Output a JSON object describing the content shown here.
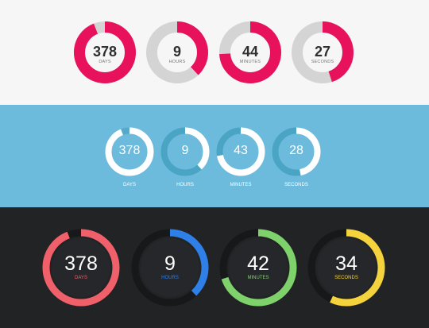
{
  "light": {
    "track_color": "#d4d4d4",
    "timers": [
      {
        "value": "378",
        "label": "Days",
        "progress": 0.94,
        "color": "#e8115b"
      },
      {
        "value": "9",
        "label": "Hours",
        "progress": 0.38,
        "color": "#e8115b"
      },
      {
        "value": "44",
        "label": "Minutes",
        "progress": 0.74,
        "color": "#e8115b"
      },
      {
        "value": "27",
        "label": "Seconds",
        "progress": 0.45,
        "color": "#e8115b"
      }
    ]
  },
  "blue": {
    "timers": [
      {
        "value": "378",
        "label": "Days",
        "progress": 0.94,
        "color": "#ffffff",
        "track": "#56a9c9"
      },
      {
        "value": "9",
        "label": "Hours",
        "progress": 0.38,
        "color": "#ffffff",
        "track": "#4aa5c5"
      },
      {
        "value": "43",
        "label": "Minutes",
        "progress": 0.72,
        "color": "#ffffff",
        "track": "#4aa5c5"
      },
      {
        "value": "28",
        "label": "Seconds",
        "progress": 0.47,
        "color": "#ffffff",
        "track": "#4aa5c5"
      }
    ]
  },
  "dark": {
    "track_color": "#17181a",
    "timers": [
      {
        "value": "378",
        "label": "Days",
        "progress": 0.94,
        "color": "#f0606a"
      },
      {
        "value": "9",
        "label": "Hours",
        "progress": 0.38,
        "color": "#2f7fe8"
      },
      {
        "value": "42",
        "label": "Minutes",
        "progress": 0.7,
        "color": "#7ed16b"
      },
      {
        "value": "34",
        "label": "Seconds",
        "progress": 0.57,
        "color": "#f5d33c"
      }
    ]
  }
}
